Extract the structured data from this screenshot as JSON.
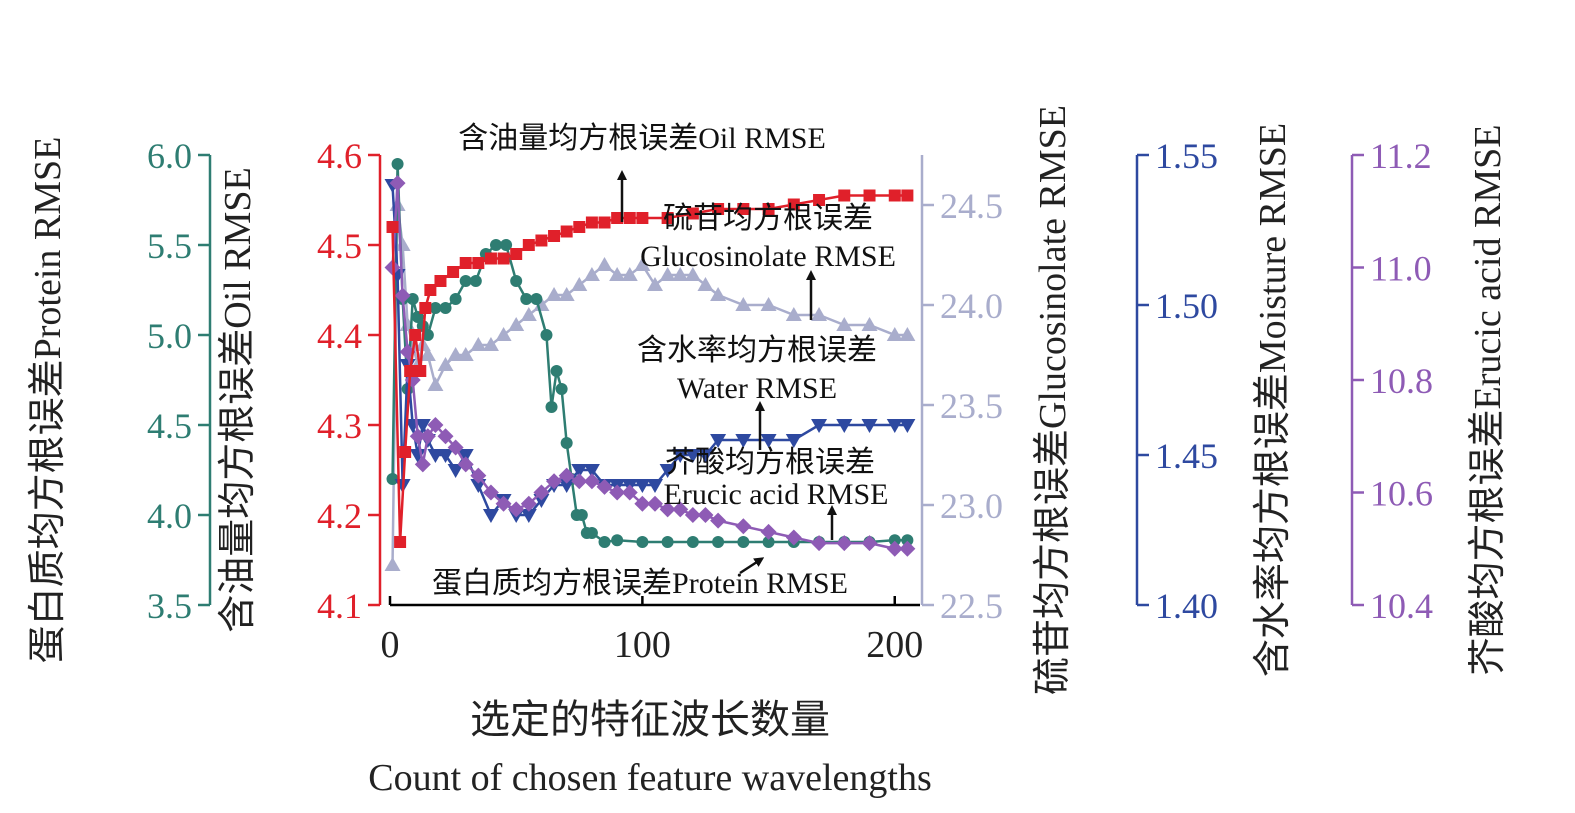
{
  "chart_data": {
    "type": "line",
    "x_range": [
      0,
      210
    ],
    "x_ticks": [
      0,
      100,
      200
    ],
    "xlabel_cn": "选定的特征波长数量",
    "xlabel_en": "Count of chosen feature wavelengths",
    "axes": [
      {
        "id": "protein",
        "label": "蛋白质均方根误差Protein RMSE",
        "color": "#2e7d72",
        "range": [
          3.5,
          6.0
        ],
        "ticks": [
          "3.5",
          "4.0",
          "4.5",
          "5.0",
          "5.5",
          "6.0"
        ]
      },
      {
        "id": "oil",
        "label": "含油量均方根误差Oil RMSE",
        "color": "#e0202a",
        "range": [
          4.1,
          4.6
        ],
        "ticks": [
          "4.1",
          "4.2",
          "4.3",
          "4.4",
          "4.5",
          "4.6"
        ]
      },
      {
        "id": "glucosinolate",
        "label": "硫苷均方根误差Glucosinolate RMSE",
        "color": "#a9adcc",
        "range": [
          22.5,
          24.75
        ],
        "ticks": [
          "22.5",
          "23.0",
          "23.5",
          "24.0",
          "24.5"
        ]
      },
      {
        "id": "moisture",
        "label": "含水率均方根误差Moisture RMSE",
        "color": "#2e49a0",
        "range": [
          1.4,
          1.55
        ],
        "ticks": [
          "1.40",
          "1.45",
          "1.50",
          "1.55"
        ]
      },
      {
        "id": "erucic",
        "label": "芥酸均方根误差Erucic acid RMSE",
        "color": "#8e5bb5",
        "range": [
          10.4,
          11.2
        ],
        "ticks": [
          "10.4",
          "10.6",
          "10.8",
          "11.0",
          "11.2"
        ]
      }
    ],
    "series": [
      {
        "id": "oil",
        "name": "含油量均方根误差Oil RMSE",
        "axis": "oil",
        "marker": "square",
        "x": [
          1,
          4,
          6,
          8,
          10,
          12,
          14,
          16,
          20,
          25,
          30,
          35,
          40,
          45,
          50,
          55,
          60,
          65,
          70,
          75,
          80,
          85,
          90,
          95,
          100,
          110,
          120,
          130,
          140,
          150,
          160,
          170,
          180,
          190,
          200,
          205
        ],
        "y": [
          4.52,
          4.17,
          4.27,
          4.36,
          4.4,
          4.36,
          4.43,
          4.45,
          4.46,
          4.47,
          4.48,
          4.48,
          4.485,
          4.485,
          4.49,
          4.5,
          4.505,
          4.51,
          4.515,
          4.52,
          4.525,
          4.525,
          4.53,
          4.53,
          4.53,
          4.53,
          4.535,
          4.54,
          4.54,
          4.54,
          4.545,
          4.55,
          4.555,
          4.555,
          4.555,
          4.555
        ]
      },
      {
        "id": "protein",
        "name": "蛋白质均方根误差Protein RMSE",
        "axis": "protein",
        "marker": "circle",
        "x": [
          1,
          3,
          5,
          7,
          9,
          11,
          13,
          15,
          18,
          22,
          26,
          30,
          34,
          38,
          42,
          46,
          50,
          54,
          58,
          62,
          64,
          66,
          68,
          70,
          72,
          74,
          76,
          78,
          80,
          85,
          90,
          100,
          110,
          120,
          130,
          140,
          150,
          160,
          170,
          180,
          190,
          200,
          205
        ],
        "y": [
          4.2,
          5.95,
          5.2,
          4.7,
          5.2,
          5.1,
          5.05,
          5.0,
          5.15,
          5.15,
          5.2,
          5.3,
          5.3,
          5.45,
          5.5,
          5.5,
          5.3,
          5.2,
          5.2,
          5.0,
          4.6,
          4.8,
          4.7,
          4.4,
          4.2,
          4.0,
          4.0,
          3.9,
          3.9,
          3.85,
          3.86,
          3.85,
          3.85,
          3.85,
          3.85,
          3.85,
          3.85,
          3.85,
          3.85,
          3.85,
          3.85,
          3.86,
          3.86
        ]
      },
      {
        "id": "glucosinolate",
        "name": "硫苷均方根误差 Glucosinolate RMSE",
        "axis": "glucosinolate",
        "marker": "triangle-up",
        "x": [
          1,
          3,
          5,
          7,
          9,
          11,
          13,
          15,
          18,
          22,
          26,
          30,
          35,
          40,
          45,
          50,
          55,
          60,
          65,
          70,
          75,
          80,
          85,
          90,
          95,
          100,
          105,
          110,
          115,
          120,
          125,
          130,
          140,
          150,
          160,
          170,
          180,
          190,
          200,
          205
        ],
        "y": [
          22.7,
          24.5,
          24.3,
          23.9,
          23.8,
          23.7,
          23.8,
          23.75,
          23.6,
          23.7,
          23.75,
          23.75,
          23.8,
          23.8,
          23.85,
          23.9,
          23.95,
          24.0,
          24.05,
          24.05,
          24.1,
          24.15,
          24.2,
          24.15,
          24.15,
          24.2,
          24.1,
          24.15,
          24.15,
          24.15,
          24.1,
          24.05,
          24.0,
          24.0,
          23.95,
          23.95,
          23.9,
          23.9,
          23.85,
          23.85
        ]
      },
      {
        "id": "moisture",
        "name": "含水率均方根误差 Water RMSE",
        "axis": "moisture",
        "marker": "triangle-down",
        "x": [
          1,
          3,
          5,
          7,
          9,
          11,
          13,
          15,
          18,
          22,
          26,
          30,
          35,
          40,
          45,
          50,
          55,
          60,
          65,
          70,
          75,
          80,
          85,
          90,
          95,
          100,
          105,
          110,
          115,
          120,
          125,
          130,
          140,
          150,
          160,
          170,
          180,
          190,
          200,
          205
        ],
        "y": [
          1.54,
          1.51,
          1.44,
          1.48,
          1.46,
          1.45,
          1.46,
          1.455,
          1.45,
          1.45,
          1.445,
          1.45,
          1.44,
          1.43,
          1.435,
          1.43,
          1.43,
          1.435,
          1.44,
          1.44,
          1.445,
          1.445,
          1.44,
          1.44,
          1.44,
          1.44,
          1.44,
          1.445,
          1.45,
          1.45,
          1.45,
          1.455,
          1.455,
          1.455,
          1.455,
          1.46,
          1.46,
          1.46,
          1.46,
          1.46
        ]
      },
      {
        "id": "erucic",
        "name": "芥酸均方根误差 Erucic acid RMSE",
        "axis": "erucic",
        "marker": "diamond",
        "x": [
          1,
          3,
          5,
          7,
          9,
          11,
          13,
          15,
          18,
          22,
          26,
          30,
          35,
          40,
          45,
          50,
          55,
          60,
          65,
          70,
          75,
          80,
          85,
          90,
          95,
          100,
          105,
          110,
          115,
          120,
          125,
          130,
          140,
          150,
          160,
          170,
          180,
          190,
          200,
          205
        ],
        "y": [
          11.0,
          11.15,
          10.95,
          10.85,
          10.8,
          10.7,
          10.65,
          10.7,
          10.72,
          10.7,
          10.68,
          10.65,
          10.63,
          10.6,
          10.58,
          10.57,
          10.58,
          10.6,
          10.62,
          10.63,
          10.62,
          10.62,
          10.61,
          10.6,
          10.6,
          10.58,
          10.58,
          10.57,
          10.57,
          10.56,
          10.56,
          10.55,
          10.54,
          10.53,
          10.52,
          10.51,
          10.51,
          10.51,
          10.5,
          10.5
        ]
      }
    ],
    "annotations": [
      {
        "series": "oil",
        "lines": [
          "含油量均方根误差Oil RMSE"
        ]
      },
      {
        "series": "glucosinolate",
        "lines": [
          "硫苷均方根误差",
          "Glucosinolate RMSE"
        ]
      },
      {
        "series": "moisture",
        "lines": [
          "含水率均方根误差",
          "Water RMSE"
        ]
      },
      {
        "series": "erucic",
        "lines": [
          "芥酸均方根误差",
          "Erucic acid RMSE"
        ]
      },
      {
        "series": "protein",
        "lines": [
          "蛋白质均方根误差Protein RMSE"
        ]
      }
    ]
  }
}
